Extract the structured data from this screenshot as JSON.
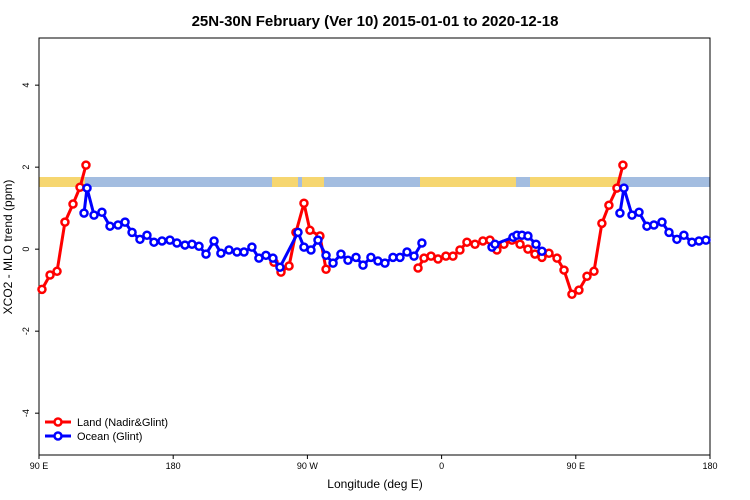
{
  "chart_data": {
    "type": "line",
    "title": "25N-30N February (Ver 10)   2015-01-01 to 2020-12-18",
    "xlabel": "Longitude (deg E)",
    "ylabel": "XCO2 - MLO trend (ppm)",
    "xlim": [
      90,
      540
    ],
    "ylim": [
      -5.02,
      5.15
    ],
    "xticks": [
      {
        "value": 90,
        "label": "90 E"
      },
      180,
      {
        "value": 270,
        "label": "90 W"
      },
      {
        "value": 360,
        "label": "0"
      },
      {
        "value": 450,
        "label": "90 E"
      },
      {
        "value": 540,
        "label": "180"
      }
    ],
    "yticks": [
      -4,
      -2,
      0,
      2,
      4
    ],
    "legend": "bottom-left",
    "series": [
      {
        "name": "Land (Nadir&Glint)",
        "color": "#ff0000",
        "x": [
          92,
          97.4,
          102.1,
          107.4,
          112.8,
          117.5,
          121.5,
          null,
          247.6,
          252.3,
          257.7,
          262.3,
          267.7,
          271.7,
          278.4,
          282.5,
          null,
          344.2,
          348.2,
          352.9,
          357.6,
          362.9,
          367.6,
          372.3,
          377,
          382.4,
          387.7,
          392.4,
          397.1,
          401.8,
          407.2,
          412.6,
          417.9,
          422.6,
          427.3,
          432,
          437.4,
          442.1,
          447.4,
          452.1,
          457.5,
          462.2,
          467.5,
          472.2,
          477.6,
          481.6
        ],
        "values": [
          -0.98,
          -0.63,
          -0.54,
          0.66,
          1.1,
          1.51,
          2.05,
          null,
          -0.32,
          -0.56,
          -0.41,
          0.41,
          1.12,
          0.46,
          0.32,
          -0.49,
          null,
          -0.46,
          -0.22,
          -0.17,
          -0.24,
          -0.17,
          -0.17,
          -0.02,
          0.17,
          0.12,
          0.2,
          0.22,
          -0.02,
          0.12,
          0.22,
          0.12,
          0,
          -0.12,
          -0.2,
          -0.1,
          -0.22,
          -0.51,
          -1.1,
          -1.0,
          -0.66,
          -0.54,
          0.63,
          1.07,
          1.49,
          2.05
        ]
      },
      {
        "name": "Ocean (Glint)",
        "color": "#0000ff",
        "x": [
          120.2,
          122.2,
          126.9,
          132.2,
          137.6,
          143,
          147.7,
          152.4,
          157.7,
          162.4,
          167.1,
          172.5,
          177.8,
          182.5,
          187.9,
          192.6,
          197.3,
          202,
          207.4,
          212,
          217.4,
          222.8,
          227.5,
          232.8,
          237.5,
          242.2,
          246.9,
          251.6,
          263.7,
          267.7,
          272.4,
          277.1,
          282.5,
          287.2,
          292.5,
          297.2,
          302.6,
          307.3,
          312.6,
          317.3,
          322,
          327.4,
          332.1,
          336.8,
          341.5,
          346.8,
          null,
          393.8,
          395.8,
          407.9,
          410.5,
          413.9,
          417.9,
          423.3,
          427.3,
          null,
          479.6,
          482.3,
          487.7,
          492.4,
          497.7,
          502.4,
          507.8,
          512.5,
          517.8,
          522.5,
          527.9,
          532.6,
          537.3
        ],
        "values": [
          0.88,
          1.49,
          0.83,
          0.9,
          0.56,
          0.59,
          0.66,
          0.41,
          0.24,
          0.34,
          0.17,
          0.2,
          0.22,
          0.15,
          0.1,
          0.12,
          0.07,
          -0.12,
          0.2,
          -0.1,
          -0.02,
          -0.07,
          -0.07,
          0.05,
          -0.22,
          -0.15,
          -0.22,
          -0.44,
          0.41,
          0.05,
          -0.02,
          0.22,
          -0.15,
          -0.34,
          -0.12,
          -0.27,
          -0.2,
          -0.39,
          -0.2,
          -0.29,
          -0.34,
          -0.2,
          -0.2,
          -0.07,
          -0.17,
          0.15,
          null,
          0.05,
          0.12,
          0.29,
          0.34,
          0.34,
          0.32,
          0.12,
          -0.05,
          null,
          0.88,
          1.49,
          0.83,
          0.9,
          0.56,
          0.59,
          0.66,
          0.41,
          0.24,
          0.34,
          0.17,
          0.2,
          0.22
        ]
      }
    ]
  }
}
